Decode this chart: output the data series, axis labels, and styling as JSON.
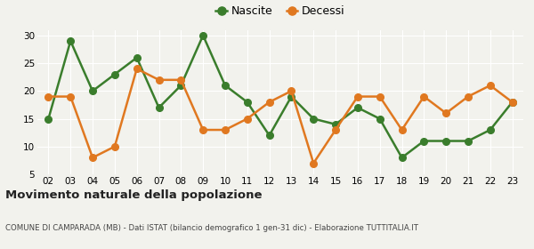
{
  "years": [
    "02",
    "03",
    "04",
    "05",
    "06",
    "07",
    "08",
    "09",
    "10",
    "11",
    "12",
    "13",
    "14",
    "15",
    "16",
    "17",
    "18",
    "19",
    "20",
    "21",
    "22",
    "23"
  ],
  "nascite": [
    15,
    29,
    20,
    23,
    26,
    17,
    21,
    30,
    21,
    18,
    12,
    19,
    15,
    14,
    17,
    15,
    8,
    11,
    11,
    11,
    13,
    18
  ],
  "decessi": [
    19,
    19,
    8,
    10,
    24,
    22,
    22,
    13,
    13,
    15,
    18,
    20,
    7,
    13,
    19,
    19,
    13,
    19,
    16,
    19,
    21,
    18
  ],
  "nascite_color": "#3a7d2c",
  "decessi_color": "#e07820",
  "background_color": "#f2f2ed",
  "grid_color": "#ffffff",
  "title": "Movimento naturale della popolazione",
  "subtitle": "COMUNE DI CAMPARADA (MB) - Dati ISTAT (bilancio demografico 1 gen-31 dic) - Elaborazione TUTTITALIA.IT",
  "legend_nascite": "Nascite",
  "legend_decessi": "Decessi",
  "ylim_min": 5,
  "ylim_max": 31,
  "yticks": [
    5,
    10,
    15,
    20,
    25,
    30
  ],
  "line_width": 1.8,
  "marker_size": 5.5
}
